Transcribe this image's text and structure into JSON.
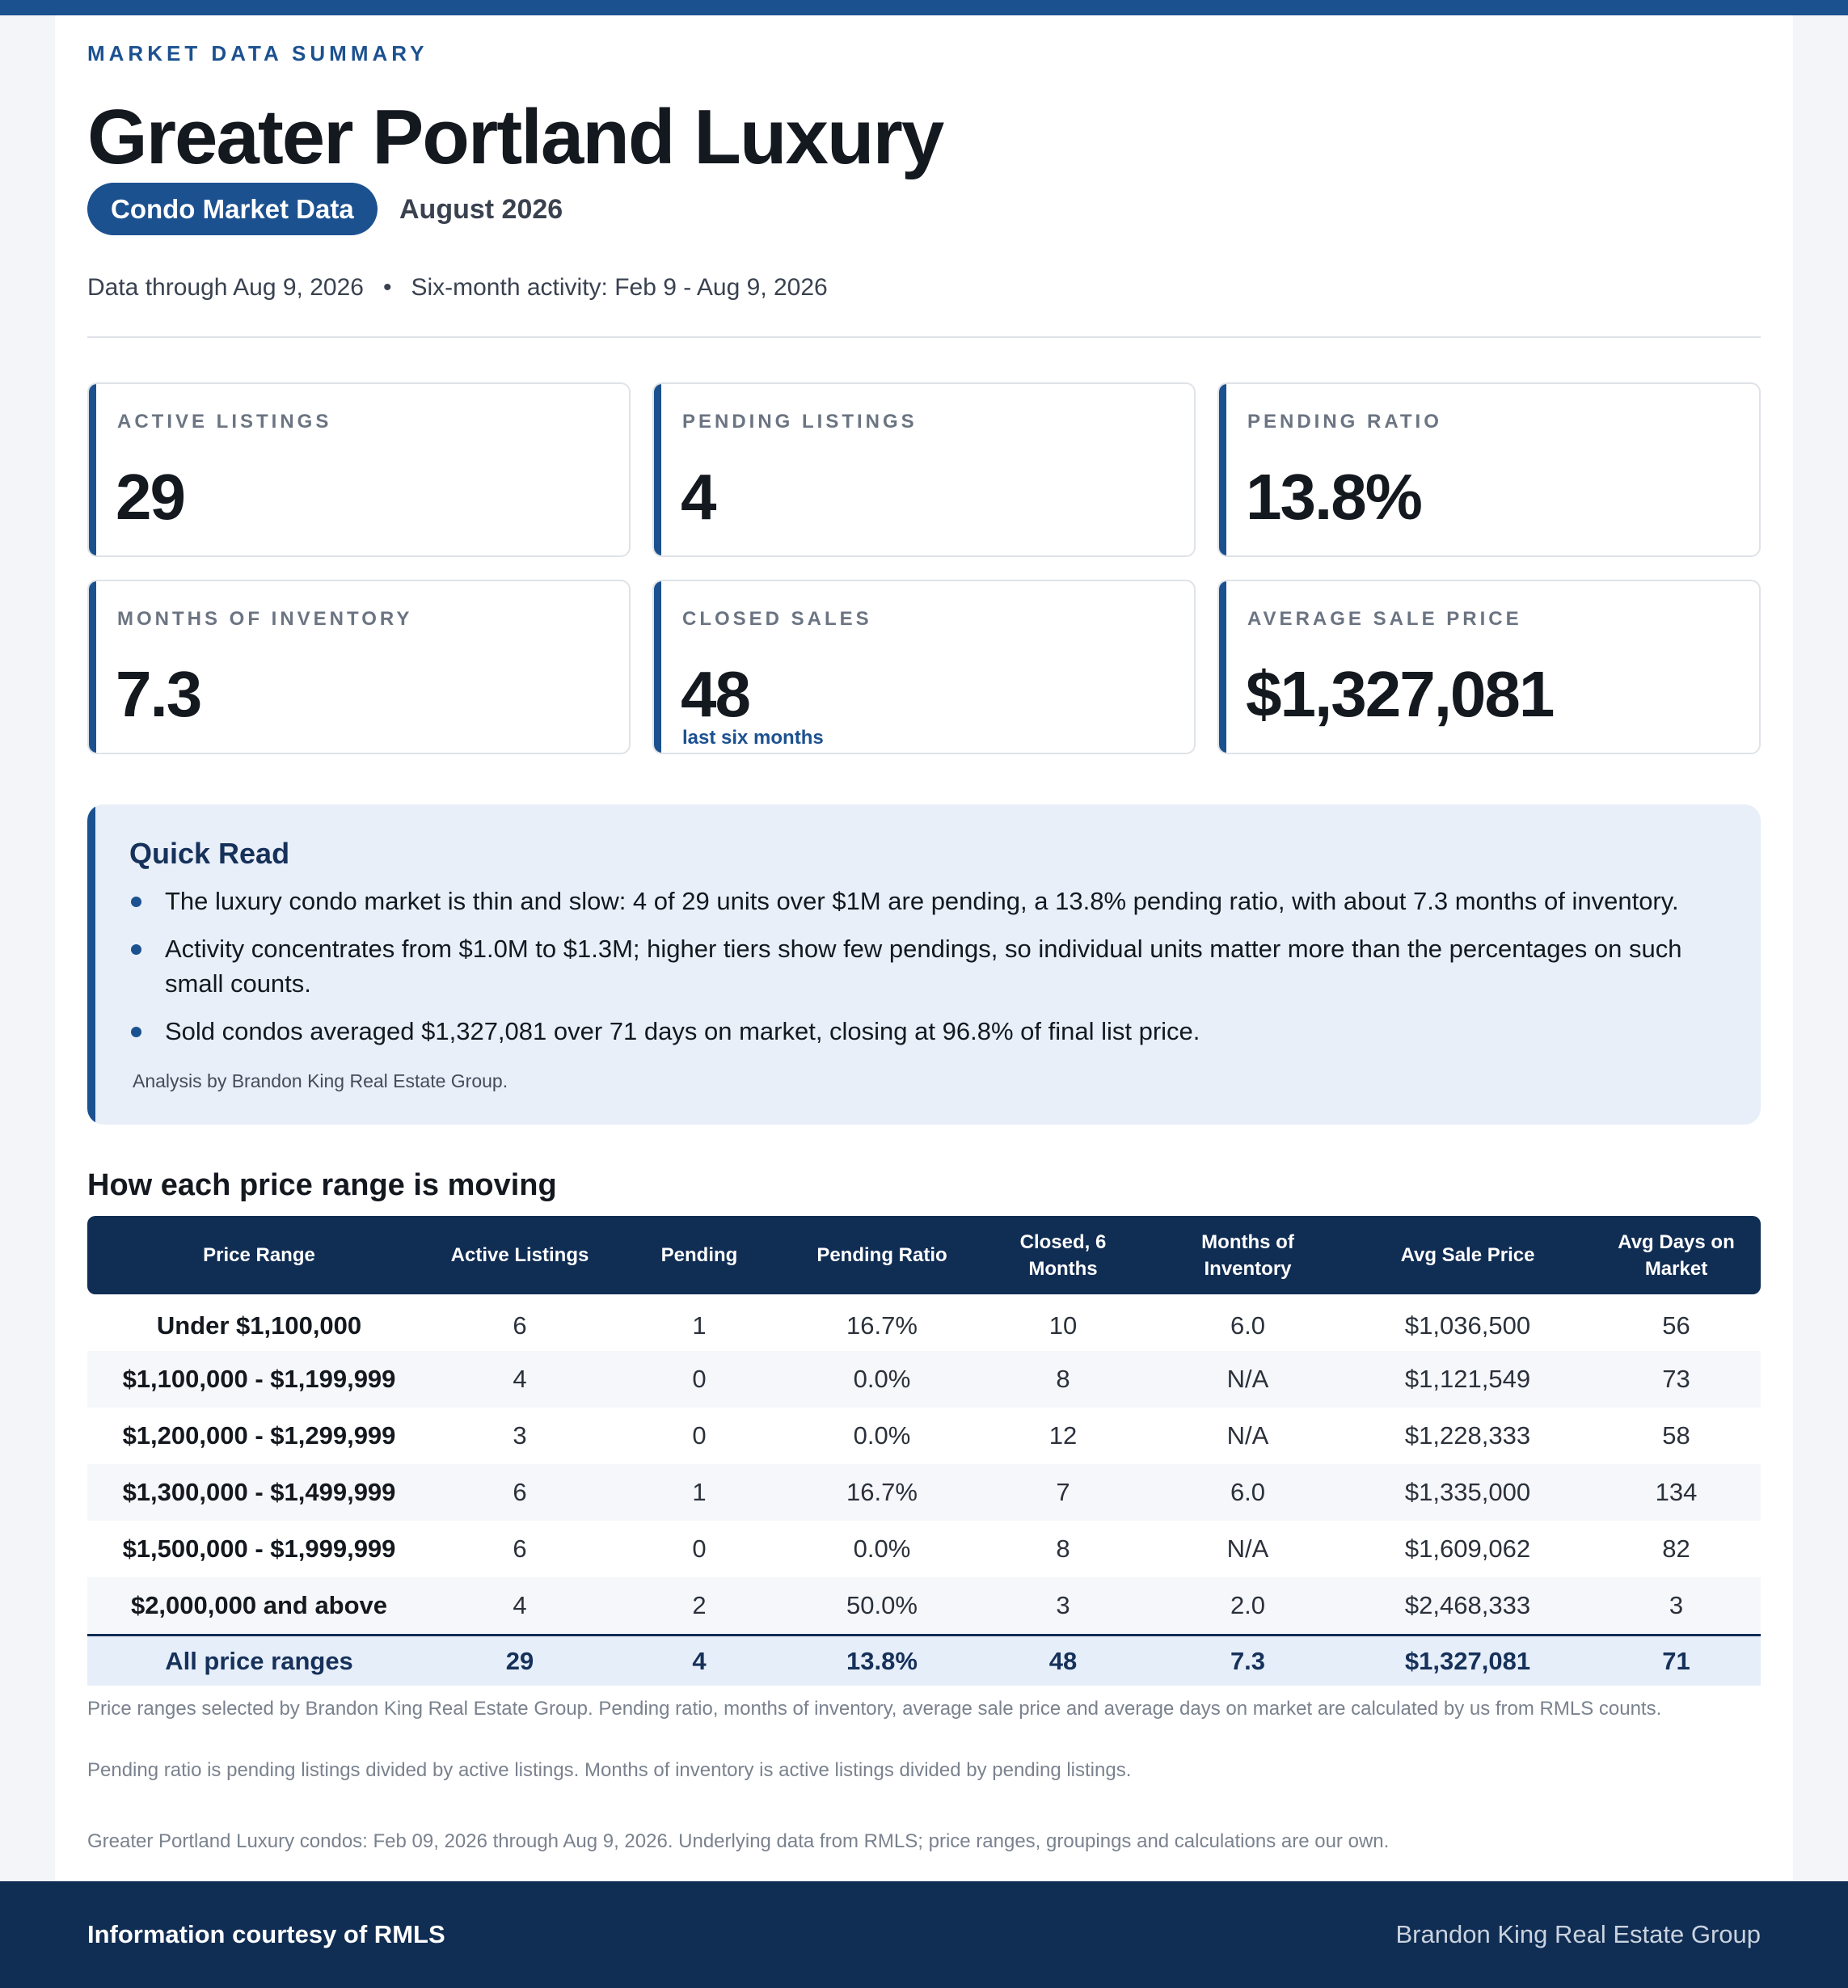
{
  "header": {
    "eyebrow": "MARKET DATA SUMMARY",
    "title": "Greater Portland Luxury",
    "pill": "Condo Market Data",
    "month": "August 2026",
    "data_through": "Data through Aug 9, 2026",
    "separator": "•",
    "activity": "Six-month activity: Feb 9 - Aug 9, 2026"
  },
  "cards": [
    {
      "label": "ACTIVE LISTINGS",
      "value": "29",
      "note": ""
    },
    {
      "label": "PENDING LISTINGS",
      "value": "4",
      "note": ""
    },
    {
      "label": "PENDING RATIO",
      "value": "13.8%",
      "note": ""
    },
    {
      "label": "MONTHS OF INVENTORY",
      "value": "7.3",
      "note": ""
    },
    {
      "label": "CLOSED SALES",
      "value": "48",
      "note": "last six months"
    },
    {
      "label": "AVERAGE SALE PRICE",
      "value": "$1,327,081",
      "note": ""
    }
  ],
  "quick_read": {
    "title": "Quick Read",
    "bullets": [
      "The luxury condo market is thin and slow: 4 of 29 units over $1M are pending, a 13.8% pending ratio, with about 7.3 months of inventory.",
      "Activity concentrates from $1.0M to $1.3M; higher tiers show few pendings, so individual units matter more than the percentages on such small counts.",
      "Sold condos averaged $1,327,081 over 71 days on market, closing at 96.8% of final list price."
    ],
    "credit": "Analysis by Brandon King Real Estate Group."
  },
  "table": {
    "title": "How each price range is moving",
    "headers": [
      "Price Range",
      "Active Listings",
      "Pending",
      "Pending Ratio",
      "Closed, 6 Months",
      "Months of Inventory",
      "Avg Sale Price",
      "Avg Days on Market"
    ],
    "rows": [
      [
        "Under $1,100,000",
        "6",
        "1",
        "16.7%",
        "10",
        "6.0",
        "$1,036,500",
        "56"
      ],
      [
        "$1,100,000 - $1,199,999",
        "4",
        "0",
        "0.0%",
        "8",
        "N/A",
        "$1,121,549",
        "73"
      ],
      [
        "$1,200,000 - $1,299,999",
        "3",
        "0",
        "0.0%",
        "12",
        "N/A",
        "$1,228,333",
        "58"
      ],
      [
        "$1,300,000 - $1,499,999",
        "6",
        "1",
        "16.7%",
        "7",
        "6.0",
        "$1,335,000",
        "134"
      ],
      [
        "$1,500,000 - $1,999,999",
        "6",
        "0",
        "0.0%",
        "8",
        "N/A",
        "$1,609,062",
        "82"
      ],
      [
        "$2,000,000 and above",
        "4",
        "2",
        "50.0%",
        "3",
        "2.0",
        "$2,468,333",
        "3"
      ]
    ],
    "total": [
      "All price ranges",
      "29",
      "4",
      "13.8%",
      "48",
      "7.3",
      "$1,327,081",
      "71"
    ]
  },
  "footnotes": {
    "note1": "Price ranges selected by Brandon King Real Estate Group. Pending ratio, months of inventory, average sale price and average days on market are calculated by us from RMLS counts.",
    "note2": "Pending ratio is pending listings divided by active listings. Months of inventory is active listings divided by pending listings.",
    "note3": "Greater Portland Luxury condos: Feb 09, 2026 through Aug 9, 2026. Underlying data from RMLS; price ranges, groupings and calculations are our own."
  },
  "footer": {
    "left": "Information courtesy of RMLS",
    "right": "Brandon King Real Estate Group"
  },
  "colors": {
    "brand": "#1c5190",
    "navy": "#102d54",
    "quick_bg": "#e8eff9"
  }
}
